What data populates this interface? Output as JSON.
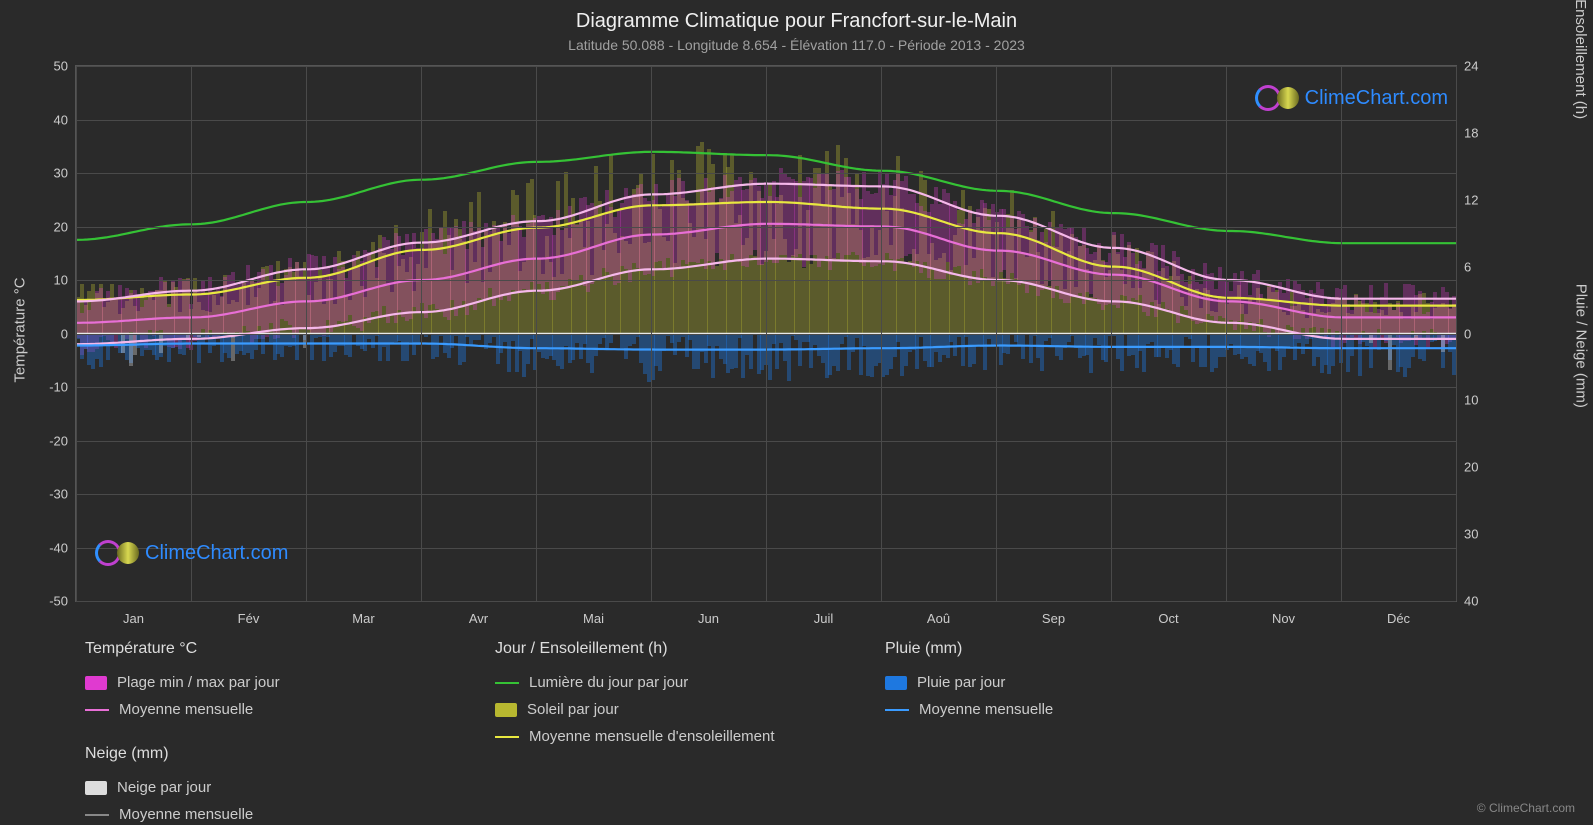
{
  "title": "Diagramme Climatique pour Francfort-sur-le-Main",
  "subtitle": "Latitude 50.088 - Longitude 8.654 - Élévation 117.0 - Période 2013 - 2023",
  "brand": "ClimeChart.com",
  "copyright": "© ClimeChart.com",
  "axis": {
    "left_title": "Température °C",
    "right_top_title": "Jour / Ensoleillement (h)",
    "right_bot_title": "Pluie / Neige (mm)",
    "x_labels": [
      "Jan",
      "Fév",
      "Mar",
      "Avr",
      "Mai",
      "Jun",
      "Juil",
      "Aoû",
      "Sep",
      "Oct",
      "Nov",
      "Déc"
    ],
    "left_ticks": [
      50,
      40,
      30,
      20,
      10,
      0,
      -10,
      -20,
      -30,
      -40,
      -50
    ],
    "right_top_ticks": [
      24,
      18,
      12,
      6,
      0
    ],
    "right_bot_ticks": [
      10,
      20,
      30,
      40
    ],
    "left_range": [
      -50,
      50
    ],
    "right_top_range": [
      0,
      24
    ],
    "right_bot_range": [
      0,
      40
    ],
    "background_color": "#2a2a2a",
    "grid_color": "#4a4a4a",
    "text_color": "#cccccc",
    "title_color": "#f0f0f0",
    "subtitle_color": "#a0a0a0",
    "title_fontsize": 20,
    "subtitle_fontsize": 14,
    "tick_fontsize": 13,
    "axis_title_fontsize": 15
  },
  "colors": {
    "temp_range": "#e03ad0",
    "temp_mean": "#e86fd6",
    "daylight": "#35c235",
    "sun_fill": "#b8b830",
    "sun_mean": "#e8e840",
    "rain_fill": "#1e78e0",
    "rain_mean": "#3a9bff",
    "snow_fill": "#dddddd",
    "snow_mean": "#888888"
  },
  "legend": {
    "temp_header": "Température °C",
    "temp_range_label": "Plage min / max par jour",
    "temp_mean_label": "Moyenne mensuelle",
    "daylight_header": "Jour / Ensoleillement (h)",
    "daylight_label": "Lumière du jour par jour",
    "sun_fill_label": "Soleil par jour",
    "sun_mean_label": "Moyenne mensuelle d'ensoleillement",
    "rain_header": "Pluie (mm)",
    "rain_fill_label": "Pluie par jour",
    "rain_mean_label": "Moyenne mensuelle",
    "snow_header": "Neige (mm)",
    "snow_fill_label": "Neige par jour",
    "snow_mean_label": "Moyenne mensuelle"
  },
  "series": {
    "months_x": [
      0.042,
      0.125,
      0.208,
      0.292,
      0.375,
      0.458,
      0.542,
      0.625,
      0.708,
      0.792,
      0.875,
      0.958
    ],
    "daylight_h": [
      8.4,
      9.8,
      11.8,
      13.8,
      15.4,
      16.3,
      16.0,
      14.6,
      12.8,
      10.8,
      9.2,
      8.1
    ],
    "sun_mean_h": [
      3.0,
      3.5,
      5.0,
      7.5,
      9.5,
      11.5,
      11.8,
      11.2,
      9.0,
      6.0,
      3.2,
      2.5
    ],
    "temp_mean_c": [
      2.0,
      3.0,
      6.0,
      10.0,
      14.0,
      18.5,
      20.5,
      20.0,
      15.5,
      11.0,
      6.0,
      3.0
    ],
    "temp_min_c": [
      -2.0,
      -1.0,
      1.0,
      4.0,
      8.0,
      12.0,
      14.0,
      13.5,
      10.0,
      6.0,
      2.0,
      -1.0
    ],
    "temp_max_c": [
      6.0,
      8.0,
      12.0,
      17.0,
      21.0,
      26.0,
      28.0,
      27.5,
      22.0,
      16.0,
      10.0,
      6.5
    ],
    "rain_mean_mm": [
      1.8,
      1.5,
      1.5,
      1.5,
      2.2,
      2.4,
      2.4,
      2.2,
      1.8,
      2.0,
      2.0,
      2.2
    ],
    "snow_mean_mm": [
      0.5,
      0.3,
      0.1,
      0,
      0,
      0,
      0,
      0,
      0,
      0,
      0.1,
      0.3
    ]
  },
  "line_style": {
    "line_width": 2.2,
    "band_opacity": 0.35
  }
}
